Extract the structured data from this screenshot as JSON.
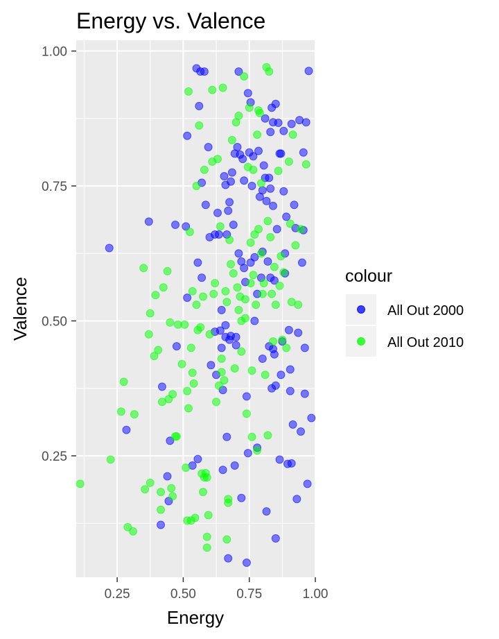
{
  "chart_data": {
    "type": "scatter",
    "title": "Energy vs. Valence",
    "xlabel": "Energy",
    "ylabel": "Valence",
    "xlim": [
      0.095,
      1.0
    ],
    "ylim": [
      0.025,
      1.02
    ],
    "x_ticks": [
      0.25,
      0.5,
      0.75,
      1.0
    ],
    "x_tick_labels": [
      "0.25",
      "0.50",
      "0.75",
      "1.00"
    ],
    "y_ticks": [
      0.25,
      0.5,
      0.75,
      1.0
    ],
    "y_tick_labels": [
      "0.25",
      "0.50",
      "0.75",
      "1.00"
    ],
    "grid": true,
    "legend": {
      "title": "colour",
      "position": "right",
      "entries": [
        {
          "label": "All Out 2000",
          "color": "#0000ff"
        },
        {
          "label": "All Out 2010",
          "color": "#00ff00"
        }
      ]
    },
    "series": [
      {
        "name": "All Out 2000",
        "color": "#0000ff",
        "points": [
          [
            0.22,
            0.635
          ],
          [
            0.285,
            0.298
          ],
          [
            0.37,
            0.684
          ],
          [
            0.415,
            0.122
          ],
          [
            0.42,
            0.378
          ],
          [
            0.44,
            0.212
          ],
          [
            0.445,
            0.166
          ],
          [
            0.45,
            0.278
          ],
          [
            0.47,
            0.678
          ],
          [
            0.475,
            0.453
          ],
          [
            0.51,
            0.675
          ],
          [
            0.515,
            0.843
          ],
          [
            0.515,
            0.543
          ],
          [
            0.535,
            0.232
          ],
          [
            0.55,
            0.968
          ],
          [
            0.555,
            0.608
          ],
          [
            0.555,
            0.244
          ],
          [
            0.56,
            0.898
          ],
          [
            0.565,
            0.962
          ],
          [
            0.57,
            0.756
          ],
          [
            0.57,
            0.58
          ],
          [
            0.58,
            0.962
          ],
          [
            0.585,
            0.715
          ],
          [
            0.595,
            0.822
          ],
          [
            0.6,
            0.655
          ],
          [
            0.605,
            0.418
          ],
          [
            0.62,
            0.66
          ],
          [
            0.62,
            0.48
          ],
          [
            0.625,
            0.4
          ],
          [
            0.63,
            0.7
          ],
          [
            0.635,
            0.66
          ],
          [
            0.64,
            0.482
          ],
          [
            0.645,
            0.52
          ],
          [
            0.645,
            0.45
          ],
          [
            0.65,
            0.224
          ],
          [
            0.65,
            0.372
          ],
          [
            0.655,
            0.768
          ],
          [
            0.66,
            0.752
          ],
          [
            0.66,
            0.492
          ],
          [
            0.66,
            0.47
          ],
          [
            0.665,
            0.285
          ],
          [
            0.665,
            0.66
          ],
          [
            0.67,
            0.704
          ],
          [
            0.67,
            0.06
          ],
          [
            0.675,
            0.72
          ],
          [
            0.675,
            0.465
          ],
          [
            0.68,
            0.758
          ],
          [
            0.68,
            0.472
          ],
          [
            0.685,
            0.775
          ],
          [
            0.69,
            0.678
          ],
          [
            0.695,
            0.81
          ],
          [
            0.695,
            0.232
          ],
          [
            0.7,
            0.47
          ],
          [
            0.7,
            0.455
          ],
          [
            0.705,
            0.822
          ],
          [
            0.71,
            0.962
          ],
          [
            0.71,
            0.625
          ],
          [
            0.715,
            0.808
          ],
          [
            0.72,
            0.61
          ],
          [
            0.72,
            0.172
          ],
          [
            0.725,
            0.8
          ],
          [
            0.73,
            0.598
          ],
          [
            0.73,
            0.76
          ],
          [
            0.735,
            0.572
          ],
          [
            0.74,
            0.36
          ],
          [
            0.74,
            0.052
          ],
          [
            0.745,
            0.922
          ],
          [
            0.745,
            0.255
          ],
          [
            0.75,
            0.812
          ],
          [
            0.755,
            0.905
          ],
          [
            0.755,
            0.608
          ],
          [
            0.76,
            0.75
          ],
          [
            0.765,
            0.805
          ],
          [
            0.77,
            0.618
          ],
          [
            0.77,
            0.5
          ],
          [
            0.78,
            0.55
          ],
          [
            0.78,
            0.265
          ],
          [
            0.785,
            0.815
          ],
          [
            0.79,
            0.73
          ],
          [
            0.795,
            0.58
          ],
          [
            0.8,
            0.742
          ],
          [
            0.8,
            0.628
          ],
          [
            0.8,
            0.43
          ],
          [
            0.805,
            0.788
          ],
          [
            0.81,
            0.765
          ],
          [
            0.81,
            0.875
          ],
          [
            0.815,
            0.722
          ],
          [
            0.815,
            0.147
          ],
          [
            0.82,
            0.61
          ],
          [
            0.825,
            0.765
          ],
          [
            0.825,
            0.453
          ],
          [
            0.83,
            0.745
          ],
          [
            0.83,
            0.58
          ],
          [
            0.83,
            0.85
          ],
          [
            0.835,
            0.895
          ],
          [
            0.835,
            0.375
          ],
          [
            0.84,
            0.868
          ],
          [
            0.84,
            0.448
          ],
          [
            0.84,
            0.713
          ],
          [
            0.845,
            0.575
          ],
          [
            0.845,
            0.438
          ],
          [
            0.85,
            0.902
          ],
          [
            0.85,
            0.38
          ],
          [
            0.85,
            0.097
          ],
          [
            0.855,
            0.67
          ],
          [
            0.86,
            0.867
          ],
          [
            0.865,
            0.81
          ],
          [
            0.865,
            0.243
          ],
          [
            0.87,
            0.81
          ],
          [
            0.87,
            0.4
          ],
          [
            0.875,
            0.462
          ],
          [
            0.88,
            0.852
          ],
          [
            0.88,
            0.74
          ],
          [
            0.885,
            0.625
          ],
          [
            0.885,
            0.588
          ],
          [
            0.89,
            0.693
          ],
          [
            0.895,
            0.235
          ],
          [
            0.9,
            0.483
          ],
          [
            0.905,
            0.41
          ],
          [
            0.905,
            0.37
          ],
          [
            0.91,
            0.865
          ],
          [
            0.91,
            0.236
          ],
          [
            0.915,
            0.308
          ],
          [
            0.92,
            0.715
          ],
          [
            0.925,
            0.672
          ],
          [
            0.93,
            0.17
          ],
          [
            0.935,
            0.478
          ],
          [
            0.94,
            0.872
          ],
          [
            0.945,
            0.295
          ],
          [
            0.95,
            0.608
          ],
          [
            0.955,
            0.812
          ],
          [
            0.955,
            0.668
          ],
          [
            0.96,
            0.365
          ],
          [
            0.96,
            0.45
          ],
          [
            0.965,
            0.868
          ],
          [
            0.97,
            0.198
          ],
          [
            0.975,
            0.963
          ],
          [
            0.985,
            0.32
          ]
        ]
      },
      {
        "name": "All Out 2010",
        "color": "#00ff00",
        "points": [
          [
            0.11,
            0.198
          ],
          [
            0.225,
            0.243
          ],
          [
            0.265,
            0.332
          ],
          [
            0.275,
            0.387
          ],
          [
            0.29,
            0.118
          ],
          [
            0.31,
            0.11
          ],
          [
            0.315,
            0.327
          ],
          [
            0.35,
            0.598
          ],
          [
            0.355,
            0.188
          ],
          [
            0.37,
            0.475
          ],
          [
            0.375,
            0.2
          ],
          [
            0.375,
            0.514
          ],
          [
            0.39,
            0.435
          ],
          [
            0.395,
            0.548
          ],
          [
            0.405,
            0.446
          ],
          [
            0.415,
            0.183
          ],
          [
            0.415,
            0.15
          ],
          [
            0.42,
            0.35
          ],
          [
            0.425,
            0.562
          ],
          [
            0.44,
            0.592
          ],
          [
            0.445,
            0.355
          ],
          [
            0.45,
            0.497
          ],
          [
            0.455,
            0.19
          ],
          [
            0.46,
            0.175
          ],
          [
            0.46,
            0.364
          ],
          [
            0.47,
            0.286
          ],
          [
            0.475,
            0.286
          ],
          [
            0.48,
            0.493
          ],
          [
            0.495,
            0.42
          ],
          [
            0.505,
            0.493
          ],
          [
            0.51,
            0.228
          ],
          [
            0.515,
            0.13
          ],
          [
            0.515,
            0.37
          ],
          [
            0.52,
            0.925
          ],
          [
            0.52,
            0.338
          ],
          [
            0.525,
            0.665
          ],
          [
            0.53,
            0.13
          ],
          [
            0.53,
            0.45
          ],
          [
            0.535,
            0.404
          ],
          [
            0.535,
            0.555
          ],
          [
            0.54,
            0.384
          ],
          [
            0.545,
            0.135
          ],
          [
            0.55,
            0.53
          ],
          [
            0.55,
            0.75
          ],
          [
            0.555,
            0.483
          ],
          [
            0.56,
            0.862
          ],
          [
            0.565,
            0.488
          ],
          [
            0.57,
            0.217
          ],
          [
            0.575,
            0.183
          ],
          [
            0.575,
            0.545
          ],
          [
            0.58,
            0.78
          ],
          [
            0.58,
            0.21
          ],
          [
            0.585,
            0.218
          ],
          [
            0.59,
            0.1
          ],
          [
            0.59,
            0.08
          ],
          [
            0.59,
            0.21
          ],
          [
            0.595,
            0.14
          ],
          [
            0.6,
            0.475
          ],
          [
            0.61,
            0.928
          ],
          [
            0.61,
            0.795
          ],
          [
            0.615,
            0.55
          ],
          [
            0.62,
            0.57
          ],
          [
            0.625,
            0.35
          ],
          [
            0.63,
            0.8
          ],
          [
            0.635,
            0.38
          ],
          [
            0.64,
            0.675
          ],
          [
            0.645,
            0.405
          ],
          [
            0.645,
            0.43
          ],
          [
            0.65,
            0.932
          ],
          [
            0.655,
            0.39
          ],
          [
            0.66,
            0.555
          ],
          [
            0.665,
            0.535
          ],
          [
            0.665,
            0.095
          ],
          [
            0.67,
            0.163
          ],
          [
            0.67,
            0.17
          ],
          [
            0.675,
            0.65
          ],
          [
            0.68,
            0.605
          ],
          [
            0.685,
            0.835
          ],
          [
            0.69,
            0.588
          ],
          [
            0.695,
            0.412
          ],
          [
            0.7,
            0.868
          ],
          [
            0.705,
            0.562
          ],
          [
            0.71,
            0.88
          ],
          [
            0.71,
            0.52
          ],
          [
            0.715,
            0.545
          ],
          [
            0.72,
            0.5
          ],
          [
            0.72,
            0.443
          ],
          [
            0.73,
            0.953
          ],
          [
            0.735,
            0.54
          ],
          [
            0.735,
            0.505
          ],
          [
            0.74,
            0.328
          ],
          [
            0.745,
            0.785
          ],
          [
            0.75,
            0.895
          ],
          [
            0.755,
            0.57
          ],
          [
            0.755,
            0.645
          ],
          [
            0.76,
            0.408
          ],
          [
            0.76,
            0.285
          ],
          [
            0.765,
            0.585
          ],
          [
            0.765,
            0.78
          ],
          [
            0.77,
            0.66
          ],
          [
            0.775,
            0.53
          ],
          [
            0.78,
            0.26
          ],
          [
            0.78,
            0.845
          ],
          [
            0.785,
            0.67
          ],
          [
            0.785,
            0.89
          ],
          [
            0.79,
            0.885
          ],
          [
            0.795,
            0.625
          ],
          [
            0.795,
            0.755
          ],
          [
            0.8,
            0.55
          ],
          [
            0.805,
            0.57
          ],
          [
            0.81,
            0.4
          ],
          [
            0.815,
            0.97
          ],
          [
            0.82,
            0.288
          ],
          [
            0.82,
            0.685
          ],
          [
            0.825,
            0.962
          ],
          [
            0.83,
            0.655
          ],
          [
            0.835,
            0.55
          ],
          [
            0.84,
            0.462
          ],
          [
            0.845,
            0.6
          ],
          [
            0.85,
            0.53
          ],
          [
            0.86,
            0.778
          ],
          [
            0.865,
            0.565
          ],
          [
            0.87,
            0.62
          ],
          [
            0.875,
            0.465
          ],
          [
            0.88,
            0.59
          ],
          [
            0.89,
            0.45
          ],
          [
            0.9,
            0.795
          ],
          [
            0.905,
            0.68
          ],
          [
            0.91,
            0.535
          ],
          [
            0.915,
            0.845
          ],
          [
            0.925,
            0.64
          ],
          [
            0.935,
            0.53
          ],
          [
            0.945,
            0.67
          ],
          [
            0.965,
            0.79
          ]
        ]
      }
    ]
  }
}
